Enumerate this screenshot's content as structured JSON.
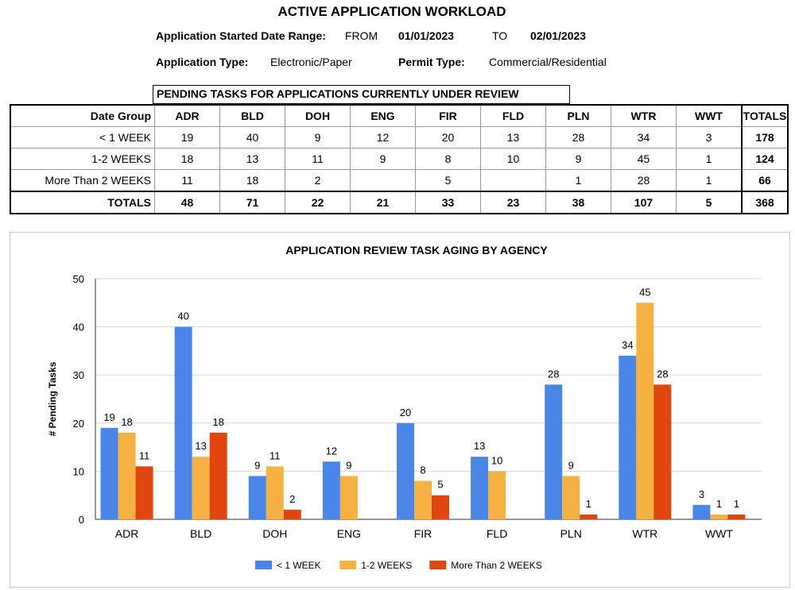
{
  "header": {
    "title": "ACTIVE APPLICATION WORKLOAD",
    "date_range_label": "Application Started Date Range:",
    "from_label": "FROM",
    "from_date": "01/01/2023",
    "to_label": "TO",
    "to_date": "02/01/2023",
    "app_type_label": "Application Type:",
    "app_type_value": "Electronic/Paper",
    "permit_type_label": "Permit Type:",
    "permit_type_value": "Commercial/Residential"
  },
  "table": {
    "banner": "PENDING TASKS FOR APPLICATIONS CURRENTLY UNDER REVIEW",
    "headers": [
      "Date Group",
      "ADR",
      "BLD",
      "DOH",
      "ENG",
      "FIR",
      "FLD",
      "PLN",
      "WTR",
      "WWT",
      "TOTALS"
    ],
    "rows": [
      [
        "< 1 WEEK",
        "19",
        "40",
        "9",
        "12",
        "20",
        "13",
        "28",
        "34",
        "3",
        "178"
      ],
      [
        "1-2 WEEKS",
        "18",
        "13",
        "11",
        "9",
        "8",
        "10",
        "9",
        "45",
        "1",
        "124"
      ],
      [
        "More Than 2 WEEKS",
        "11",
        "18",
        "2",
        "",
        "5",
        "",
        "1",
        "28",
        "1",
        "66"
      ],
      [
        "TOTALS",
        "48",
        "71",
        "22",
        "21",
        "33",
        "23",
        "38",
        "107",
        "5",
        "368"
      ]
    ]
  },
  "chart_data": {
    "type": "bar",
    "title": "APPLICATION REVIEW TASK AGING BY AGENCY",
    "xlabel": "",
    "ylabel": "# Pending Tasks",
    "ylim": [
      0,
      50
    ],
    "yticks": [
      0,
      10,
      20,
      30,
      40,
      50
    ],
    "grid": true,
    "legend": "bottom",
    "categories": [
      "ADR",
      "BLD",
      "DOH",
      "ENG",
      "FIR",
      "FLD",
      "PLN",
      "WTR",
      "WWT"
    ],
    "series": [
      {
        "name": "< 1 WEEK",
        "color": "#4a86e8",
        "values": [
          19,
          40,
          9,
          12,
          20,
          13,
          28,
          34,
          3
        ]
      },
      {
        "name": "1-2 WEEKS",
        "color": "#f6b143",
        "values": [
          18,
          13,
          11,
          9,
          8,
          10,
          9,
          45,
          1
        ]
      },
      {
        "name": "More Than 2 WEEKS",
        "color": "#e0460d",
        "values": [
          11,
          18,
          2,
          null,
          5,
          null,
          1,
          28,
          1
        ]
      }
    ]
  }
}
